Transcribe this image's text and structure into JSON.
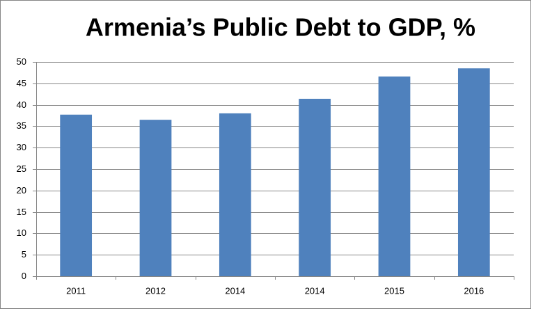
{
  "chart_data": {
    "type": "bar",
    "title": "Armenia’s Public Debt to GDP, %",
    "categories": [
      "2011",
      "2012",
      "2014",
      "2014",
      "2015",
      "2016"
    ],
    "values": [
      37.7,
      36.5,
      38.0,
      41.4,
      46.6,
      48.5
    ],
    "color": "#4f81bd",
    "ylim": [
      0,
      50
    ],
    "yticks": [
      0,
      5,
      10,
      15,
      20,
      25,
      30,
      35,
      40,
      45,
      50
    ],
    "grid": true
  }
}
